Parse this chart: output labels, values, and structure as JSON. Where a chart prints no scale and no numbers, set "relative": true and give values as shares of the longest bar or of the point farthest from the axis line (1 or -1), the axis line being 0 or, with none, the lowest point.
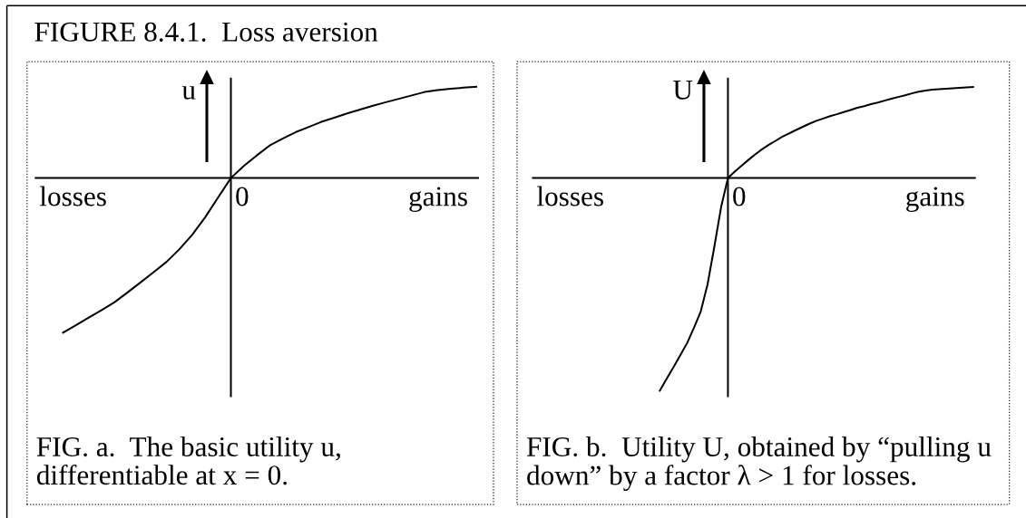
{
  "chart_data": [
    {
      "type": "line",
      "title": "FIGURE 8.4.1.  Loss aversion",
      "ylabel": "u",
      "relative": true,
      "categories": [
        null,
        null,
        null,
        null,
        null,
        null,
        null,
        null,
        null,
        null,
        null,
        null,
        null,
        null,
        null,
        null,
        null,
        null,
        null,
        null,
        null,
        null,
        null,
        null,
        null,
        null,
        null,
        null,
        null,
        null,
        null,
        null,
        null
      ],
      "series": [
        {
          "color": "#000000",
          "values": [
            -1.0,
            -0.951,
            -0.902,
            -0.853,
            -0.802,
            -0.739,
            -0.675,
            -0.61,
            -0.543,
            -0.461,
            -0.367,
            -0.255,
            -0.127,
            0,
            0.078,
            0.146,
            0.21,
            0.255,
            0.296,
            0.329,
            0.363,
            0.39,
            0.418,
            0.443,
            0.467,
            0.49,
            0.512,
            0.534,
            0.556,
            0.569,
            0.577,
            0.584,
            0.59
          ]
        }
      ],
      "annotations": [
        "losses",
        "0",
        "gains",
        "FIG. a.  The basic utility u,\ndifferentiable at x = 0."
      ]
    },
    {
      "type": "line",
      "ylabel": "U",
      "relative": true,
      "categories": [
        null,
        null,
        null,
        null,
        null,
        null,
        null,
        null,
        null,
        null,
        null,
        null,
        null,
        null,
        null,
        null,
        null,
        null,
        null,
        null,
        null,
        null,
        null,
        null,
        null,
        null,
        null,
        null,
        null,
        null,
        null,
        null,
        null,
        null,
        null,
        null,
        null,
        null,
        null,
        null,
        null,
        null,
        null,
        null,
        null,
        null,
        null
      ],
      "series": [
        {
          "color": "#000000",
          "values": [
            -1.0,
            -0.944,
            -0.889,
            -0.833,
            -0.776,
            -0.705,
            -0.628,
            -0.501,
            -0.323,
            -0.136,
            0,
            0.03,
            0.058,
            0.085,
            0.111,
            0.135,
            0.156,
            0.175,
            0.195,
            0.21,
            0.226,
            0.241,
            0.256,
            0.269,
            0.28,
            0.291,
            0.3,
            0.31,
            0.32,
            0.33,
            0.338,
            0.347,
            0.355,
            0.364,
            0.373,
            0.381,
            0.389,
            0.398,
            0.406,
            0.411,
            0.415,
            0.418,
            0.42,
            0.422,
            0.424,
            0.426,
            0.428
          ]
        }
      ],
      "annotations": [
        "losses",
        "0",
        "gains",
        "FIG. b.  Utility U, obtained by “pulling u\ndown” by a factor λ > 1 for losses."
      ]
    }
  ]
}
